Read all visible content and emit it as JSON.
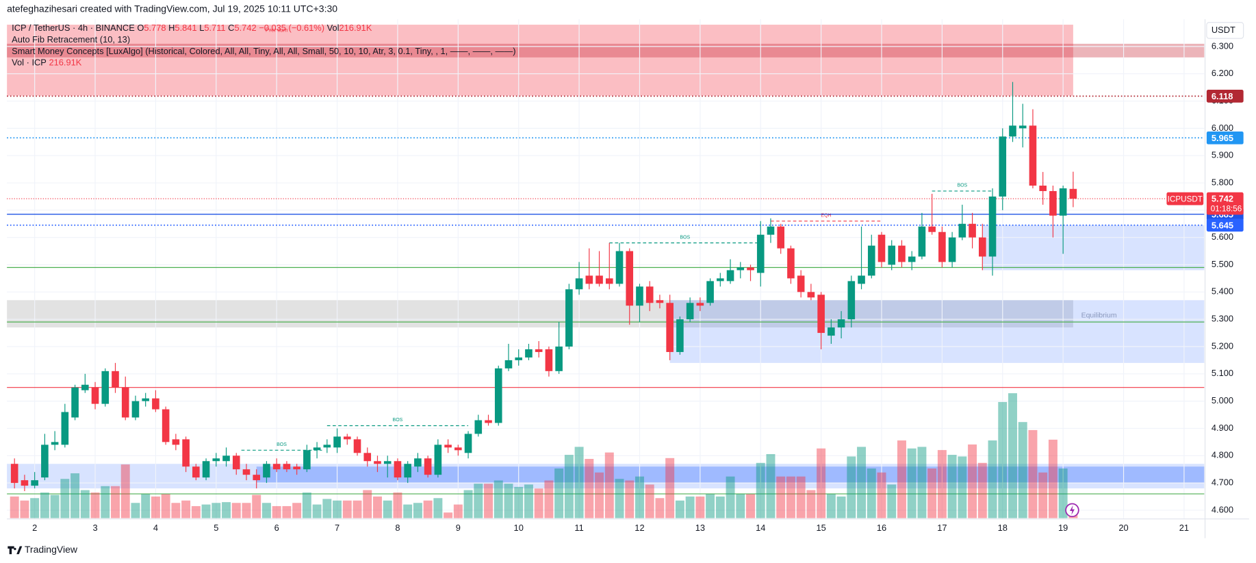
{
  "header": {
    "credit": "atefeghazihesari created with TradingView.com, Jul 19, 2025 10:11 UTC+3:30"
  },
  "legend": {
    "symbol": "ICP / TetherUS · 4h · BINANCE",
    "ohlc": [
      {
        "key": "O",
        "value": "5.778"
      },
      {
        "key": "H",
        "value": "5.841"
      },
      {
        "key": "L",
        "value": "5.711"
      },
      {
        "key": "C",
        "value": "5.742"
      }
    ],
    "change": "−0.035 (−0.61%)",
    "vol_key": "Vol",
    "vol_value": "216.91K",
    "indicators": [
      "Auto Fib Retracement (10, 13)",
      "Smart Money Concepts [LuxAlgo] (Historical, Colored, All, All, Tiny, All, All, Small, 50, 10, 10, Atr, 3, 0.1, Tiny, , 1, ——, ——, ——)"
    ],
    "vol_line": "Vol · ICP",
    "vol_line_value": "216.91K"
  },
  "footer": {
    "logo_text": "TradingView"
  },
  "chart_data": {
    "type": "candlestick",
    "axis_unit": "USDT",
    "up_color": "#089981",
    "down_color": "#f23645",
    "volume_up_color": "rgba(8,153,129,0.45)",
    "volume_down_color": "rgba(242,54,69,0.45)",
    "xlim": [
      13,
      488
    ],
    "xticks": [
      {
        "value": 24,
        "label": "2"
      },
      {
        "value": 48,
        "label": "3"
      },
      {
        "value": 72,
        "label": "4"
      },
      {
        "value": 96,
        "label": "5"
      },
      {
        "value": 120,
        "label": "6"
      },
      {
        "value": 144,
        "label": "7"
      },
      {
        "value": 168,
        "label": "8"
      },
      {
        "value": 192,
        "label": "9"
      },
      {
        "value": 216,
        "label": "10"
      },
      {
        "value": 240,
        "label": "11"
      },
      {
        "value": 264,
        "label": "12"
      },
      {
        "value": 288,
        "label": "13"
      },
      {
        "value": 312,
        "label": "14"
      },
      {
        "value": 336,
        "label": "15"
      },
      {
        "value": 360,
        "label": "16"
      },
      {
        "value": 384,
        "label": "17"
      },
      {
        "value": 408,
        "label": "18"
      },
      {
        "value": 432,
        "label": "19"
      },
      {
        "value": 456,
        "label": "20"
      },
      {
        "value": 480,
        "label": "21"
      }
    ],
    "ylim": [
      4.568,
      6.4
    ],
    "yticks": [
      {
        "value": 4.6,
        "label": "4.600"
      },
      {
        "value": 4.7,
        "label": "4.700"
      },
      {
        "value": 4.8,
        "label": "4.800"
      },
      {
        "value": 4.9,
        "label": "4.900"
      },
      {
        "value": 5.0,
        "label": "5.000"
      },
      {
        "value": 5.1,
        "label": "5.100"
      },
      {
        "value": 5.2,
        "label": "5.200"
      },
      {
        "value": 5.3,
        "label": "5.300"
      },
      {
        "value": 5.4,
        "label": "5.400"
      },
      {
        "value": 5.5,
        "label": "5.500"
      },
      {
        "value": 5.6,
        "label": "5.600"
      },
      {
        "value": 5.7,
        "label": "5.700"
      },
      {
        "value": 5.8,
        "label": "5.800"
      },
      {
        "value": 5.9,
        "label": "5.900"
      },
      {
        "value": 6.0,
        "label": "6.000"
      },
      {
        "value": 6.1,
        "label": "6.100"
      },
      {
        "value": 6.2,
        "label": "6.200"
      },
      {
        "value": 6.3,
        "label": "6.300"
      }
    ],
    "grid": true,
    "x": [
      16,
      20,
      24,
      28,
      32,
      36,
      40,
      44,
      48,
      52,
      56,
      60,
      64,
      68,
      72,
      76,
      80,
      84,
      88,
      92,
      96,
      100,
      104,
      108,
      112,
      116,
      120,
      124,
      128,
      132,
      136,
      140,
      144,
      148,
      152,
      156,
      160,
      164,
      168,
      172,
      176,
      180,
      184,
      188,
      192,
      196,
      200,
      204,
      208,
      212,
      216,
      220,
      224,
      228,
      232,
      236,
      240,
      244,
      248,
      252,
      256,
      260,
      264,
      268,
      272,
      276,
      280,
      284,
      288,
      292,
      296,
      300,
      304,
      308,
      312,
      316,
      320,
      324,
      328,
      332,
      336,
      340,
      344,
      348,
      352,
      356,
      360,
      364,
      368,
      372,
      376,
      380,
      384,
      388,
      392,
      396,
      400,
      404,
      408,
      412,
      416,
      420,
      424,
      428,
      432,
      436
    ],
    "open": [
      4.77,
      4.71,
      4.69,
      4.72,
      4.84,
      4.84,
      4.94,
      5.04,
      5.05,
      4.99,
      5.11,
      5.05,
      4.94,
      5.0,
      5.01,
      4.97,
      4.86,
      4.86,
      4.76,
      4.72,
      4.78,
      4.78,
      4.8,
      4.75,
      4.73,
      4.72,
      4.77,
      4.77,
      4.76,
      4.75,
      4.82,
      4.83,
      4.83,
      4.87,
      4.86,
      4.81,
      4.78,
      4.77,
      4.78,
      4.72,
      4.76,
      4.79,
      4.73,
      4.84,
      4.83,
      4.81,
      4.88,
      4.93,
      4.92,
      5.12,
      5.15,
      5.16,
      5.19,
      5.19,
      5.11,
      5.2,
      5.41,
      5.46,
      5.46,
      5.45,
      5.43,
      5.55,
      5.35,
      5.42,
      5.37,
      5.36,
      5.18,
      5.3,
      5.36,
      5.36,
      5.44,
      5.44,
      5.48,
      5.49,
      5.47,
      5.61,
      5.64,
      5.56,
      5.46,
      5.4,
      5.39,
      5.24,
      5.27,
      5.3,
      5.43,
      5.46,
      5.61,
      5.5,
      5.57,
      5.51,
      5.53,
      5.64,
      5.62,
      5.51,
      5.6,
      5.65,
      5.6,
      5.53,
      5.75,
      5.97,
      6.0,
      6.01,
      5.79,
      5.77,
      5.68,
      5.778
    ],
    "high": [
      4.79,
      4.73,
      4.74,
      4.88,
      4.89,
      4.99,
      5.06,
      5.1,
      5.07,
      5.12,
      5.14,
      5.09,
      5.02,
      5.03,
      5.04,
      4.98,
      4.88,
      4.87,
      4.77,
      4.79,
      4.81,
      4.83,
      4.81,
      4.77,
      4.75,
      4.78,
      4.79,
      4.78,
      4.77,
      4.84,
      4.85,
      4.86,
      4.9,
      4.88,
      4.87,
      4.83,
      4.8,
      4.8,
      4.79,
      4.78,
      4.81,
      4.8,
      4.86,
      4.86,
      4.84,
      4.89,
      4.95,
      4.95,
      5.13,
      5.21,
      5.19,
      5.21,
      5.22,
      5.2,
      5.29,
      5.43,
      5.51,
      5.56,
      5.55,
      5.58,
      5.58,
      5.56,
      5.43,
      5.44,
      5.39,
      5.39,
      5.31,
      5.38,
      5.38,
      5.45,
      5.47,
      5.52,
      5.51,
      5.5,
      5.66,
      5.67,
      5.65,
      5.57,
      5.48,
      5.43,
      5.4,
      5.3,
      5.33,
      5.46,
      5.64,
      5.61,
      5.62,
      5.59,
      5.59,
      5.55,
      5.69,
      5.76,
      5.64,
      5.62,
      5.72,
      5.69,
      5.65,
      5.78,
      6.0,
      6.17,
      6.09,
      6.07,
      5.84,
      5.79,
      5.79,
      5.841
    ],
    "low": [
      4.68,
      4.67,
      4.68,
      4.71,
      4.82,
      4.83,
      4.93,
      5.03,
      4.97,
      4.98,
      5.03,
      4.93,
      4.93,
      4.98,
      4.96,
      4.84,
      4.82,
      4.74,
      4.71,
      4.71,
      4.76,
      4.76,
      4.73,
      4.71,
      4.68,
      4.7,
      4.74,
      4.74,
      4.73,
      4.74,
      4.79,
      4.81,
      4.81,
      4.84,
      4.8,
      4.76,
      4.74,
      4.72,
      4.71,
      4.7,
      4.74,
      4.72,
      4.72,
      4.81,
      4.8,
      4.79,
      4.87,
      4.91,
      4.91,
      5.11,
      5.13,
      5.15,
      5.16,
      5.09,
      5.1,
      5.19,
      5.39,
      5.41,
      5.42,
      5.41,
      5.42,
      5.28,
      5.29,
      5.33,
      5.34,
      5.15,
      5.17,
      5.29,
      5.33,
      5.35,
      5.42,
      5.43,
      5.45,
      5.44,
      5.42,
      5.58,
      5.54,
      5.43,
      5.38,
      5.37,
      5.19,
      5.21,
      5.23,
      5.27,
      5.41,
      5.45,
      5.49,
      5.48,
      5.49,
      5.48,
      5.52,
      5.61,
      5.49,
      5.49,
      5.59,
      5.56,
      5.48,
      5.46,
      5.7,
      5.95,
      5.93,
      5.78,
      5.72,
      5.6,
      5.54,
      5.711
    ],
    "close": [
      4.7,
      4.69,
      4.71,
      4.84,
      4.85,
      4.96,
      5.05,
      5.06,
      4.99,
      5.11,
      5.05,
      4.94,
      5.0,
      5.01,
      4.97,
      4.85,
      4.84,
      4.76,
      4.72,
      4.78,
      4.79,
      4.8,
      4.75,
      4.73,
      4.71,
      4.77,
      4.75,
      4.75,
      4.75,
      4.82,
      4.83,
      4.84,
      4.87,
      4.86,
      4.81,
      4.78,
      4.77,
      4.78,
      4.72,
      4.77,
      4.79,
      4.73,
      4.84,
      4.83,
      4.82,
      4.88,
      4.93,
      4.92,
      5.12,
      5.15,
      5.16,
      5.19,
      5.18,
      5.11,
      5.2,
      5.41,
      5.45,
      5.43,
      5.43,
      5.43,
      5.55,
      5.35,
      5.42,
      5.36,
      5.36,
      5.18,
      5.3,
      5.36,
      5.35,
      5.44,
      5.45,
      5.48,
      5.49,
      5.48,
      5.61,
      5.64,
      5.56,
      5.45,
      5.4,
      5.38,
      5.25,
      5.27,
      5.3,
      5.44,
      5.46,
      5.57,
      5.51,
      5.57,
      5.51,
      5.53,
      5.64,
      5.62,
      5.51,
      5.6,
      5.65,
      5.6,
      5.53,
      5.75,
      5.97,
      6.01,
      6.01,
      5.79,
      5.77,
      5.68,
      5.78,
      5.742
    ],
    "volume": [
      392,
      319,
      363,
      464,
      421,
      711,
      812,
      508,
      464,
      580,
      580,
      972,
      276,
      435,
      392,
      435,
      276,
      319,
      218,
      247,
      276,
      290,
      276,
      276,
      421,
      276,
      218,
      218,
      276,
      464,
      247,
      348,
      319,
      319,
      319,
      508,
      392,
      319,
      464,
      247,
      276,
      319,
      363,
      102,
      247,
      508,
      624,
      624,
      682,
      624,
      566,
      609,
      537,
      682,
      899,
      1146,
      1291,
      1073,
      827,
      1189,
      711,
      682,
      754,
      609,
      363,
      1088,
      319,
      392,
      392,
      435,
      392,
      754,
      435,
      435,
      1001,
      1160,
      754,
      754,
      754,
      508,
      1262,
      435,
      392,
      1117,
      1291,
      899,
      827,
      609,
      1407,
      1262,
      1291,
      899,
      1233,
      1146,
      1117,
      1334,
      1001,
      1407,
      2103,
      2262,
      1740,
      1595,
      827,
      1421,
      899,
      216.91
    ],
    "zones": [
      {
        "top": 6.38,
        "bottom": 6.12,
        "from": 13,
        "to": 436,
        "color": "rgba(242,54,69,0.32)"
      },
      {
        "top": 6.31,
        "bottom": 6.26,
        "from": 13,
        "to": 488,
        "color": "rgba(200,40,55,0.35)"
      },
      {
        "top": 5.37,
        "bottom": 5.27,
        "from": 13,
        "to": 436,
        "color": "rgba(160,160,160,0.3)",
        "label": "Equilibrium"
      },
      {
        "top": 5.645,
        "bottom": 5.48,
        "from": 400,
        "to": 488,
        "color": "rgba(41,98,255,0.18)"
      },
      {
        "top": 5.37,
        "bottom": 5.14,
        "from": 276,
        "to": 488,
        "color": "rgba(41,98,255,0.18)"
      },
      {
        "top": 4.77,
        "bottom": 4.68,
        "from": 13,
        "to": 488,
        "color": "rgba(41,98,255,0.18)"
      },
      {
        "top": 4.76,
        "bottom": 4.7,
        "from": 112,
        "to": 488,
        "color": "rgba(41,98,255,0.32)"
      }
    ],
    "levels": [
      {
        "price": 5.49,
        "color": "#4caf50"
      },
      {
        "price": 5.29,
        "color": "#4caf50"
      },
      {
        "price": 5.05,
        "color": "#f23645"
      },
      {
        "price": 4.66,
        "color": "#4caf50"
      }
    ],
    "structure": [
      {
        "label": "BOS",
        "price": 5.77,
        "from": 380,
        "to": 404,
        "color": "#089981"
      },
      {
        "label": "BOS",
        "price": 5.58,
        "from": 252,
        "to": 312,
        "color": "#089981"
      },
      {
        "label": "BOS",
        "price": 4.91,
        "from": 140,
        "to": 196,
        "color": "#089981"
      },
      {
        "label": "BOS",
        "price": 4.82,
        "from": 106,
        "to": 138,
        "color": "#089981"
      },
      {
        "label": "EQH",
        "price": 5.66,
        "from": 316,
        "to": 360,
        "color": "#f23645"
      }
    ],
    "premium_label": "Premium",
    "price_markers": [
      {
        "price": 6.118,
        "color": "#b22833",
        "style": "dotted"
      },
      {
        "price": 5.965,
        "color": "#2196f3",
        "style": "dotted"
      },
      {
        "price": 5.685,
        "color": "#1e53e5",
        "style": "solid"
      },
      {
        "price": 5.645,
        "color": "#2962ff",
        "style": "dotted"
      }
    ],
    "current_price": {
      "symbol": "ICPUSDT",
      "price": 5.742,
      "countdown": "01:18:56",
      "color": "#f23645"
    }
  }
}
